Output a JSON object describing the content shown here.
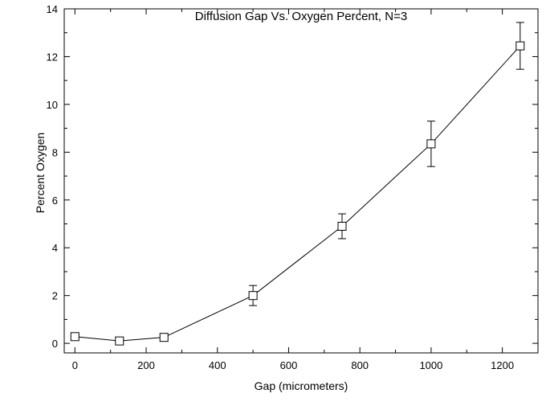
{
  "chart_data": {
    "type": "line",
    "title": "Diffusion Gap Vs. Oxygen Percent, N=3",
    "xlabel": "Gap (micrometers)",
    "ylabel": "Percent Oxygen",
    "xlim": [
      -30,
      1300
    ],
    "ylim": [
      -0.4,
      14
    ],
    "xticks": [
      0,
      200,
      400,
      600,
      800,
      1000,
      1200
    ],
    "yticks": [
      0,
      2,
      4,
      6,
      8,
      10,
      12,
      14
    ],
    "grid": false,
    "legend": "none",
    "marker": "open-square",
    "series": [
      {
        "x": [
          0,
          125,
          250,
          500,
          750,
          1000,
          1250
        ],
        "y": [
          0.28,
          0.1,
          0.25,
          2.0,
          4.9,
          8.35,
          12.45
        ],
        "error": [
          0,
          0,
          0,
          0.42,
          0.52,
          0.95,
          0.98
        ]
      }
    ]
  }
}
